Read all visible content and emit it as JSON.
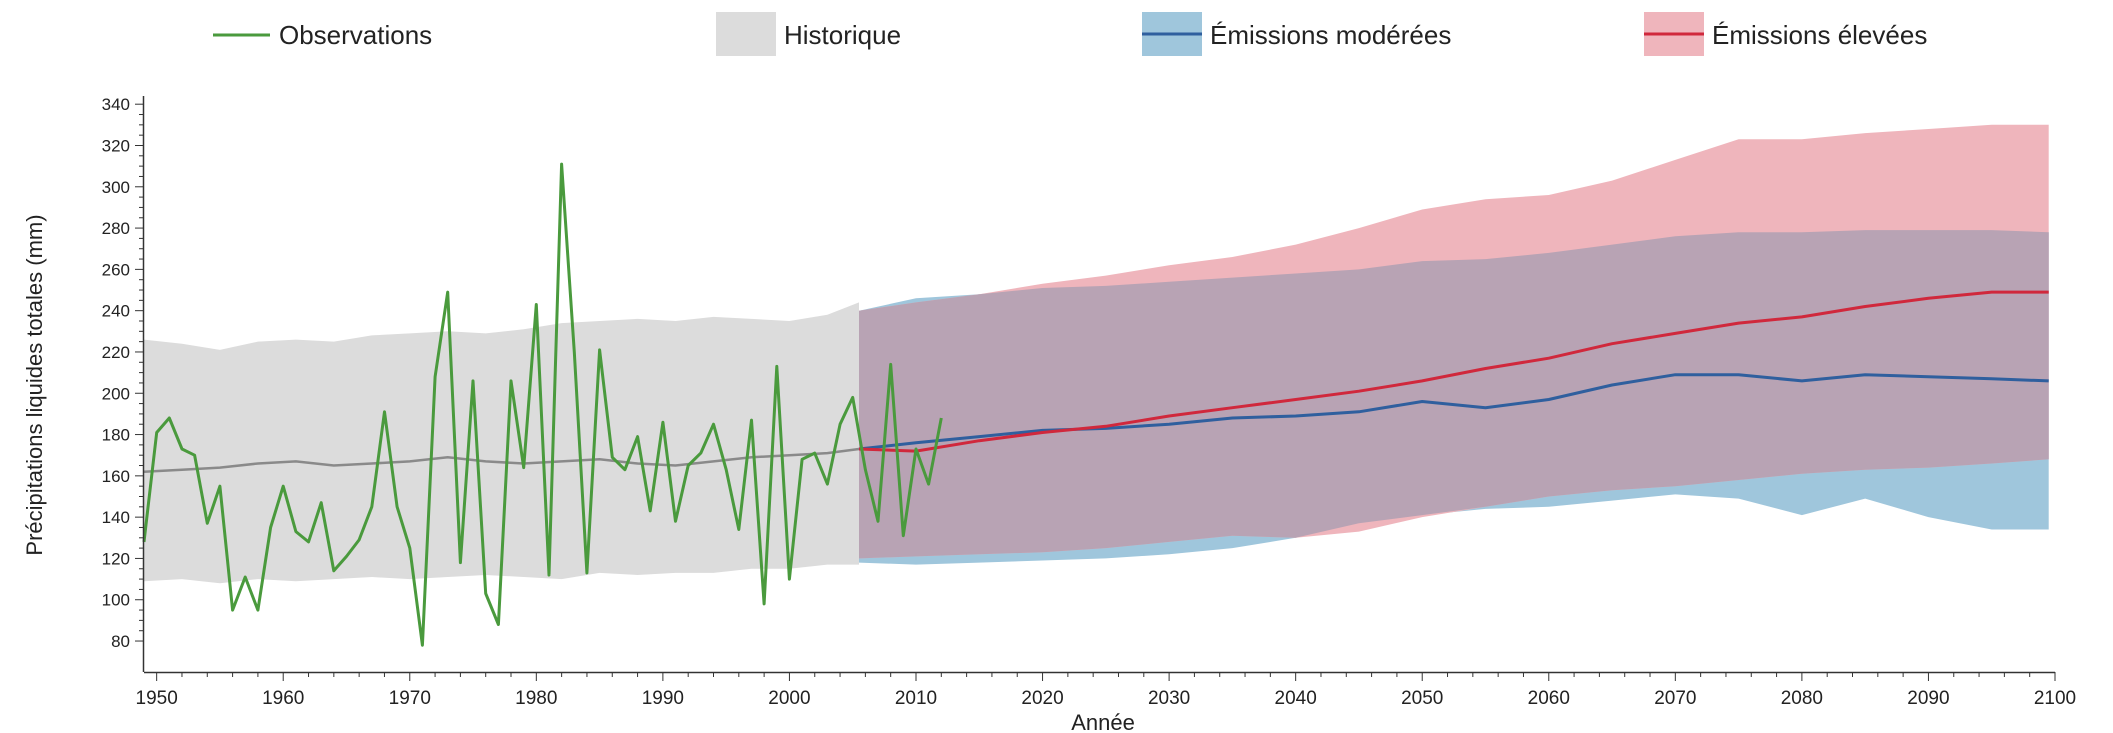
{
  "chart_data": {
    "type": "line",
    "xlabel": "Année",
    "ylabel": "Précipitations liquides totales (mm)",
    "xlim": [
      1949,
      2100
    ],
    "ylim": [
      65,
      343
    ],
    "x_ticks": [
      1950,
      1960,
      1970,
      1980,
      1990,
      2000,
      2010,
      2020,
      2030,
      2040,
      2050,
      2060,
      2070,
      2080,
      2090,
      2100
    ],
    "y_ticks": [
      80,
      100,
      120,
      140,
      160,
      180,
      200,
      220,
      240,
      260,
      280,
      300,
      320,
      340
    ],
    "grid": false,
    "legend": {
      "placement": "top",
      "entries": [
        {
          "label": "Observations",
          "symbol": "line",
          "color": "#4a9a3d"
        },
        {
          "label": "Historique",
          "symbol": "box",
          "color": "#dcdcdc"
        },
        {
          "label": "Émissions modérées",
          "symbol": "box-line",
          "color": "#9fc6dc",
          "line_color": "#2f5f9e"
        },
        {
          "label": "Émissions élevées",
          "symbol": "box-line",
          "color": "#efb5bc",
          "line_color": "#d0283c"
        }
      ]
    },
    "colors": {
      "observations": "#4a9a3d",
      "historical_band": "#dcdcdc",
      "historical_median": "#8a8a8a",
      "moderate_band": "#9fc6dc",
      "moderate_line": "#2f5f9e",
      "high_band": "#efb5bc",
      "high_line": "#d0283c",
      "overlap_band": "#b8a3b4"
    },
    "observations": {
      "x": [
        1949,
        1950,
        1951,
        1952,
        1953,
        1954,
        1955,
        1956,
        1957,
        1958,
        1959,
        1960,
        1961,
        1962,
        1963,
        1964,
        1965,
        1966,
        1967,
        1968,
        1969,
        1970,
        1971,
        1972,
        1973,
        1974,
        1975,
        1976,
        1977,
        1978,
        1979,
        1980,
        1981,
        1982,
        1983,
        1984,
        1985,
        1986,
        1987,
        1988,
        1989,
        1990,
        1991,
        1992,
        1993,
        1994,
        1995,
        1996,
        1997,
        1998,
        1999,
        2000,
        2001,
        2002,
        2003,
        2004,
        2005,
        2006,
        2007,
        2008,
        2009,
        2010,
        2011,
        2012
      ],
      "y": [
        128,
        181,
        188,
        173,
        170,
        137,
        155,
        95,
        111,
        95,
        135,
        155,
        133,
        128,
        147,
        114,
        121,
        129,
        145,
        191,
        145,
        125,
        78,
        208,
        249,
        118,
        206,
        103,
        88,
        206,
        164,
        243,
        112,
        311,
        220,
        113,
        221,
        169,
        163,
        179,
        143,
        186,
        138,
        165,
        171,
        185,
        163,
        134,
        187,
        98,
        213,
        110,
        168,
        171,
        156,
        185,
        198,
        163,
        138,
        214,
        131,
        173,
        156,
        188
      ]
    },
    "historical": {
      "x": [
        1949,
        1952,
        1955,
        1958,
        1961,
        1964,
        1967,
        1970,
        1973,
        1976,
        1979,
        1982,
        1985,
        1988,
        1991,
        1994,
        1997,
        2000,
        2003,
        2005.5
      ],
      "upper": [
        226,
        224,
        221,
        225,
        226,
        225,
        228,
        229,
        230,
        229,
        231,
        234,
        235,
        236,
        235,
        237,
        236,
        235,
        238,
        244
      ],
      "lower": [
        109,
        110,
        108,
        110,
        109,
        110,
        111,
        110,
        111,
        112,
        111,
        110,
        113,
        112,
        113,
        113,
        115,
        115,
        117,
        117
      ],
      "median": [
        162,
        163,
        164,
        166,
        167,
        165,
        166,
        167,
        169,
        167,
        166,
        167,
        168,
        166,
        165,
        167,
        169,
        170,
        171,
        173
      ]
    },
    "moderate": {
      "x": [
        2005.5,
        2010,
        2015,
        2020,
        2025,
        2030,
        2035,
        2040,
        2045,
        2050,
        2055,
        2060,
        2065,
        2070,
        2075,
        2080,
        2085,
        2090,
        2095,
        2099.5
      ],
      "median": [
        173,
        176,
        179,
        182,
        183,
        185,
        188,
        189,
        191,
        196,
        193,
        197,
        204,
        209,
        209,
        206,
        209,
        208,
        207,
        206
      ],
      "upper": [
        240,
        246,
        248,
        251,
        252,
        254,
        256,
        258,
        260,
        264,
        265,
        268,
        272,
        276,
        278,
        278,
        279,
        279,
        279,
        278
      ],
      "lower": [
        118,
        117,
        118,
        119,
        120,
        122,
        125,
        130,
        137,
        141,
        144,
        145,
        148,
        151,
        149,
        141,
        149,
        140,
        134,
        134
      ]
    },
    "high": {
      "x": [
        2005.5,
        2010,
        2015,
        2020,
        2025,
        2030,
        2035,
        2040,
        2045,
        2050,
        2055,
        2060,
        2065,
        2070,
        2075,
        2080,
        2085,
        2090,
        2095,
        2099.5
      ],
      "median": [
        173,
        172,
        177,
        181,
        184,
        189,
        193,
        197,
        201,
        206,
        212,
        217,
        224,
        229,
        234,
        237,
        242,
        246,
        249,
        249
      ],
      "upper": [
        240,
        244,
        248,
        253,
        257,
        262,
        266,
        272,
        280,
        289,
        294,
        296,
        303,
        313,
        323,
        323,
        326,
        328,
        330,
        330
      ],
      "lower": [
        120,
        121,
        122,
        123,
        125,
        128,
        131,
        130,
        133,
        140,
        145,
        150,
        153,
        155,
        158,
        161,
        163,
        164,
        166,
        168
      ]
    }
  }
}
